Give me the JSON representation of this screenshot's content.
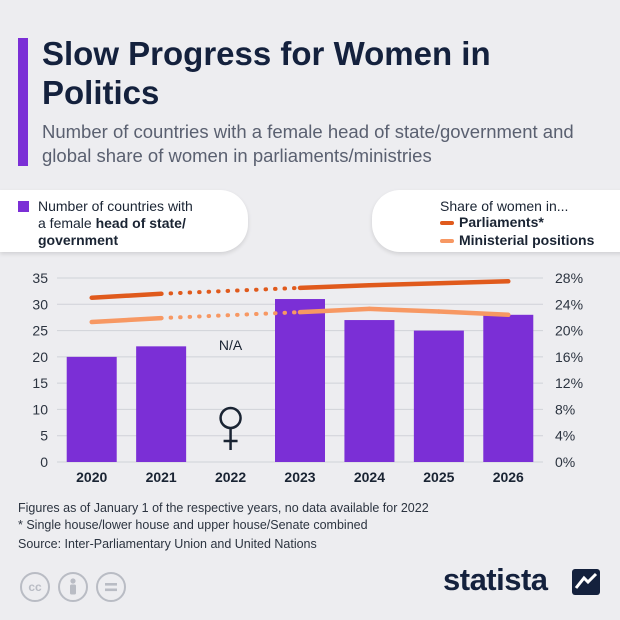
{
  "title": "Slow Progress for Women in Politics",
  "subtitle": "Number of countries with a female head of state/government and global share of women in parliaments/ministries",
  "legend_left": {
    "line1": "Number of countries with",
    "line2_prefix": "a female ",
    "line2_bold": "head of state/",
    "line3_bold": "government",
    "color": "#7b2fd6"
  },
  "legend_right": {
    "heading": "Share of women in...",
    "parliaments": "Parliaments*",
    "ministerial": "Ministerial positions",
    "parliaments_color": "#e05a1c",
    "ministerial_color": "#f79863"
  },
  "chart_data": {
    "type": "bar",
    "categories": [
      "2020",
      "2021",
      "2022",
      "2023",
      "2024",
      "2025",
      "2026"
    ],
    "series": [
      {
        "name": "Number of countries with a female head of state/government",
        "type": "bar",
        "axis": "left",
        "values": [
          20,
          22,
          null,
          31,
          27,
          25,
          28
        ],
        "color": "#7b2fd6"
      },
      {
        "name": "Parliaments*",
        "type": "line",
        "axis": "right",
        "values": [
          25,
          25.6,
          null,
          26.5,
          26.9,
          27.2,
          27.5
        ],
        "color": "#e05a1c"
      },
      {
        "name": "Ministerial positions",
        "type": "line",
        "axis": "right",
        "values": [
          21.3,
          21.9,
          null,
          22.8,
          23.3,
          22.9,
          22.4
        ],
        "color": "#f79863"
      }
    ],
    "y_left": {
      "min": 0,
      "max": 35,
      "ticks": [
        0,
        5,
        10,
        15,
        20,
        25,
        30,
        35
      ]
    },
    "y_right": {
      "min": 0,
      "max": 28,
      "ticks": [
        "0%",
        "4%",
        "8%",
        "12%",
        "16%",
        "20%",
        "24%",
        "28%"
      ]
    },
    "na_label": "N/A",
    "gridlines": true
  },
  "footnotes": {
    "line1": "Figures as of January 1 of the respective years, no data available for 2022",
    "line2": "* Single house/lower house and upper house/Senate combined",
    "source": "Source: Inter-Parliamentary Union and United Nations"
  },
  "license_icons": [
    "cc-icon",
    "person-icon",
    "equals-icon"
  ],
  "brand": "statista"
}
